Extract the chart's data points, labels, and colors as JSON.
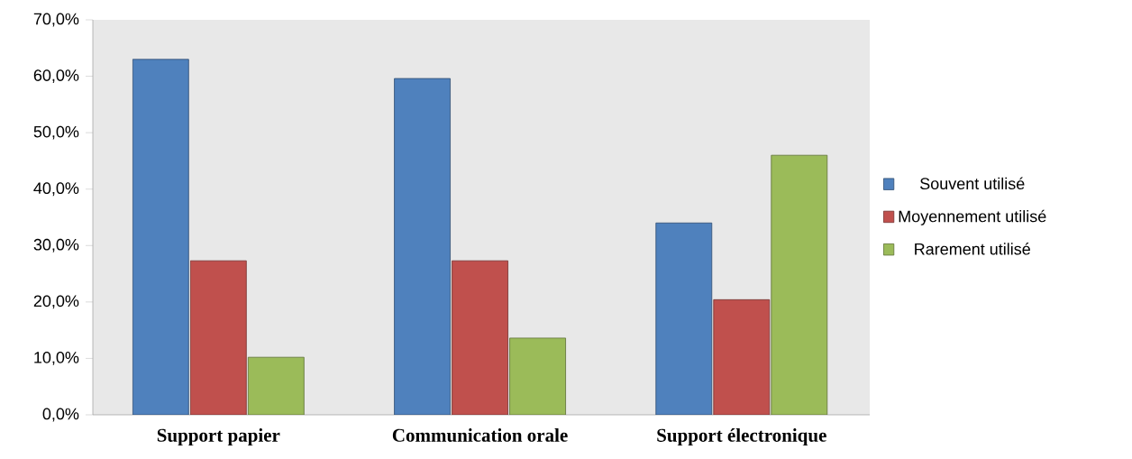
{
  "chart_data": {
    "type": "bar",
    "categories": [
      "Support papier",
      "Communication orale",
      "Support électronique"
    ],
    "series": [
      {
        "name": "Souvent utilisé",
        "color": "#4f81bd",
        "values": [
          63.0,
          59.6,
          34.0
        ]
      },
      {
        "name": "Moyennement utilisé",
        "color": "#c0504d",
        "values": [
          27.3,
          27.3,
          20.4
        ]
      },
      {
        "name": "Rarement utilisé",
        "color": "#9bbb59",
        "values": [
          10.2,
          13.6,
          46.0
        ]
      }
    ],
    "ylim": [
      0,
      70
    ],
    "yticks": [
      {
        "value": 0,
        "label": "0,0%"
      },
      {
        "value": 10,
        "label": "10,0%"
      },
      {
        "value": 20,
        "label": "20,0%"
      },
      {
        "value": 30,
        "label": "30,0%"
      },
      {
        "value": 40,
        "label": "40,0%"
      },
      {
        "value": 50,
        "label": "50,0%"
      },
      {
        "value": 60,
        "label": "60,0%"
      },
      {
        "value": 70,
        "label": "70,0%"
      }
    ],
    "grid": false,
    "legend": "right"
  }
}
